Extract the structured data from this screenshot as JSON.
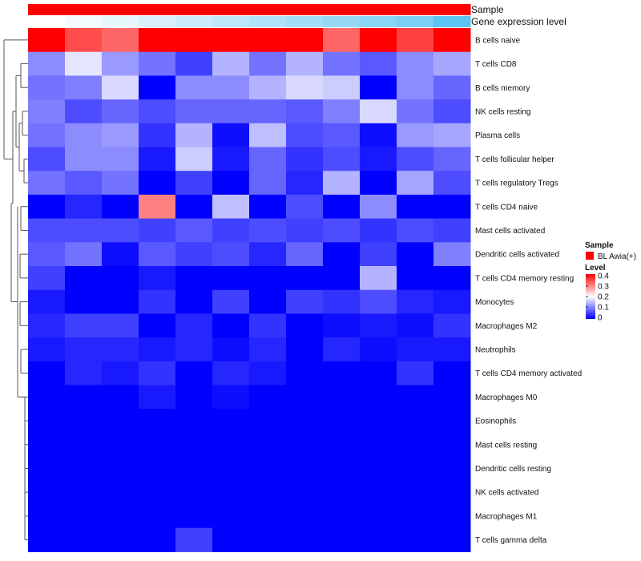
{
  "chart_data": {
    "type": "heatmap",
    "title": "",
    "annotations": {
      "sample": {
        "label": "Sample",
        "color": "#ff0000"
      },
      "gene_expression": {
        "label": "Gene expression level",
        "values": [
          0.0,
          0.08,
          0.16,
          0.24,
          0.32,
          0.4,
          0.48,
          0.56,
          0.64,
          0.72,
          0.8,
          1.0
        ]
      }
    },
    "rows": [
      "B cells naive",
      "T cells CD8",
      "B cells memory",
      "NK cells resting",
      "Plasma cells",
      "T cells follicular helper",
      "T cells regulatory  Tregs",
      "T cells CD4 naive",
      "Mast cells activated",
      "Dendritic cells activated",
      "T cells CD4 memory resting",
      "Monocytes",
      "Macrophages M2",
      "Neutrophils",
      "T cells CD4 memory activated",
      "Macrophages M0",
      "Eosinophils",
      "Mast cells resting",
      "Dendritic cells resting",
      "NK cells activated",
      "Macrophages M1",
      "T cells gamma delta"
    ],
    "values": [
      [
        0.45,
        0.34,
        0.32,
        0.43,
        0.4,
        0.45,
        0.42,
        0.41,
        0.32,
        0.45,
        0.35,
        0.43
      ],
      [
        0.11,
        0.18,
        0.12,
        0.09,
        0.05,
        0.14,
        0.09,
        0.14,
        0.09,
        0.07,
        0.11,
        0.13
      ],
      [
        0.09,
        0.1,
        0.17,
        0.0,
        0.11,
        0.11,
        0.14,
        0.17,
        0.16,
        0.0,
        0.11,
        0.08
      ],
      [
        0.1,
        0.06,
        0.08,
        0.06,
        0.08,
        0.08,
        0.08,
        0.07,
        0.1,
        0.17,
        0.09,
        0.06
      ],
      [
        0.09,
        0.11,
        0.12,
        0.04,
        0.14,
        0.01,
        0.15,
        0.06,
        0.07,
        0.01,
        0.12,
        0.13
      ],
      [
        0.06,
        0.11,
        0.11,
        0.02,
        0.16,
        0.02,
        0.08,
        0.04,
        0.06,
        0.02,
        0.06,
        0.08
      ],
      [
        0.09,
        0.07,
        0.09,
        0.0,
        0.05,
        0.0,
        0.08,
        0.03,
        0.14,
        0.0,
        0.13,
        0.06
      ],
      [
        0.0,
        0.03,
        0.0,
        0.3,
        0.0,
        0.15,
        0.0,
        0.06,
        0.0,
        0.11,
        0.0,
        0.0
      ],
      [
        0.06,
        0.06,
        0.06,
        0.05,
        0.07,
        0.05,
        0.06,
        0.05,
        0.06,
        0.04,
        0.06,
        0.05
      ],
      [
        0.07,
        0.09,
        0.01,
        0.07,
        0.05,
        0.06,
        0.03,
        0.08,
        0.0,
        0.05,
        0.0,
        0.1
      ],
      [
        0.05,
        0.0,
        0.0,
        0.02,
        0.0,
        0.0,
        0.0,
        0.0,
        0.0,
        0.14,
        0.0,
        0.0
      ],
      [
        0.02,
        0.0,
        0.0,
        0.04,
        0.0,
        0.05,
        0.0,
        0.05,
        0.04,
        0.06,
        0.03,
        0.02
      ],
      [
        0.03,
        0.05,
        0.05,
        0.0,
        0.03,
        0.0,
        0.04,
        0.0,
        0.01,
        0.02,
        0.01,
        0.04
      ],
      [
        0.02,
        0.03,
        0.03,
        0.02,
        0.03,
        0.01,
        0.03,
        0.0,
        0.03,
        0.01,
        0.02,
        0.02
      ],
      [
        0.0,
        0.03,
        0.02,
        0.04,
        0.0,
        0.03,
        0.02,
        0.0,
        0.0,
        0.0,
        0.04,
        0.0
      ],
      [
        0.0,
        0.0,
        0.0,
        0.02,
        0.0,
        0.01,
        0.0,
        0.0,
        0.0,
        0.0,
        0.0,
        0.0
      ],
      [
        0.0,
        0.0,
        0.0,
        0.0,
        0.0,
        0.0,
        0.0,
        0.0,
        0.0,
        0.0,
        0.0,
        0.0
      ],
      [
        0.0,
        0.0,
        0.0,
        0.0,
        0.0,
        0.0,
        0.0,
        0.0,
        0.0,
        0.0,
        0.0,
        0.0
      ],
      [
        0.0,
        0.0,
        0.0,
        0.0,
        0.0,
        0.0,
        0.0,
        0.0,
        0.0,
        0.0,
        0.0,
        0.0
      ],
      [
        0.0,
        0.0,
        0.0,
        0.0,
        0.0,
        0.0,
        0.0,
        0.0,
        0.0,
        0.0,
        0.0,
        0.0
      ],
      [
        0.0,
        0.0,
        0.0,
        0.0,
        0.0,
        0.0,
        0.0,
        0.0,
        0.0,
        0.0,
        0.0,
        0.0
      ],
      [
        0.0,
        0.0,
        0.0,
        0.0,
        0.05,
        0.0,
        0.0,
        0.0,
        0.0,
        0.0,
        0.0,
        0.0
      ]
    ],
    "color_scale": {
      "min": 0,
      "mid": 0.2,
      "max": 0.4,
      "low_color": "#0000ff",
      "mid_color": "#ffffff",
      "high_color": "#ff0000"
    },
    "legend": {
      "sample_title": "Sample",
      "sample_entry": "BL Awia(+)",
      "level_title": "Level",
      "ticks": [
        "0.4",
        "0.3",
        "0.2",
        "0.1",
        "0"
      ],
      "placement": "right"
    }
  }
}
